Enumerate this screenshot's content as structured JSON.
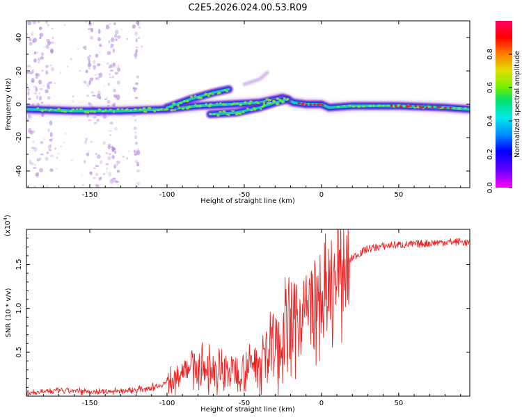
{
  "title": "C2E5.2026.024.00.53.R09",
  "colors": {
    "ridge_outer": "#7a2fd0",
    "ridge_mid": "#1a2ee8",
    "ridge_teal": "#16c8c0",
    "ridge_green": "#7ce23a",
    "ridge_red": "#e8142a",
    "scatter": "#b68be0",
    "snr_line": "#ee2222",
    "colorbar": [
      "#ff00ff",
      "#6a00ff",
      "#0000ff",
      "#0090ff",
      "#00e8e8",
      "#00e070",
      "#70f000",
      "#e0e000",
      "#ff8000",
      "#ff0000",
      "#ff0060"
    ]
  },
  "chart_data": [
    {
      "type": "heatmap",
      "xlabel": "Height of straight line (km)",
      "ylabel": "Frequency (Hz)",
      "xlim": [
        -191,
        96
      ],
      "ylim": [
        -50,
        50
      ],
      "xticks": [
        -150,
        -100,
        -50,
        0,
        50
      ],
      "xtick_labels": [
        "-150",
        "-100",
        "-50",
        "0",
        "50"
      ],
      "yticks": [
        -40,
        -20,
        0,
        20,
        40
      ],
      "ytick_labels": [
        "-40",
        "-20",
        "0",
        "20",
        "40"
      ],
      "ridges": [
        {
          "name": "main",
          "points": [
            [
              -191,
              -3
            ],
            [
              -160,
              -4
            ],
            [
              -130,
              -4
            ],
            [
              -100,
              -3
            ],
            [
              -80,
              -1
            ],
            [
              -60,
              0
            ],
            [
              -40,
              1
            ],
            [
              -25,
              4
            ],
            [
              -18,
              1
            ],
            [
              -10,
              0
            ],
            [
              0,
              0
            ],
            [
              5,
              -2
            ],
            [
              20,
              -1
            ],
            [
              50,
              -1
            ],
            [
              80,
              -2
            ],
            [
              96,
              -3
            ]
          ]
        },
        {
          "name": "upper",
          "points": [
            [
              -100,
              -2
            ],
            [
              -85,
              3
            ],
            [
              -70,
              7
            ],
            [
              -60,
              9
            ]
          ]
        },
        {
          "name": "lower",
          "points": [
            [
              -72,
              -6
            ],
            [
              -55,
              -5
            ],
            [
              -40,
              -2
            ],
            [
              -30,
              1
            ],
            [
              -22,
              3
            ]
          ]
        },
        {
          "name": "faint",
          "points": [
            [
              -50,
              12
            ],
            [
              -40,
              15
            ],
            [
              -35,
              19
            ]
          ]
        }
      ],
      "colorbar": {
        "label": "Normalized spectral amplitude",
        "ticks": [
          0.0,
          0.2,
          0.4,
          0.6,
          0.8
        ],
        "tick_labels": [
          "0.0",
          "0.2",
          "0.4",
          "0.6",
          "0.8"
        ],
        "range": [
          0,
          1
        ]
      }
    },
    {
      "type": "line",
      "xlabel": "Height of straight line (km)",
      "ylabel": "SNR (10 * v/v)",
      "scale_label": "(x10",
      "scale_exp": "4",
      "scale_close": ")",
      "xlim": [
        -191,
        96
      ],
      "ylim": [
        0,
        1.9
      ],
      "xticks": [
        -150,
        -100,
        -50,
        0,
        50
      ],
      "xtick_labels": [
        "-150",
        "-100",
        "-50",
        "0",
        "50"
      ],
      "yticks": [
        0.5,
        1.0,
        1.5
      ],
      "ytick_labels": [
        "0.5",
        "1.0",
        "1.5"
      ],
      "envelope": [
        [
          -191,
          0.04
        ],
        [
          -170,
          0.06
        ],
        [
          -140,
          0.05
        ],
        [
          -120,
          0.07
        ],
        [
          -105,
          0.12
        ],
        [
          -95,
          0.2
        ],
        [
          -88,
          0.35
        ],
        [
          -80,
          0.32
        ],
        [
          -70,
          0.3
        ],
        [
          -60,
          0.28
        ],
        [
          -50,
          0.32
        ],
        [
          -40,
          0.42
        ],
        [
          -30,
          0.55
        ],
        [
          -22,
          0.75
        ],
        [
          -15,
          0.9
        ],
        [
          -8,
          1.0
        ],
        [
          0,
          1.05
        ],
        [
          5,
          1.12
        ],
        [
          10,
          1.3
        ],
        [
          15,
          1.45
        ],
        [
          20,
          1.58
        ],
        [
          30,
          1.68
        ],
        [
          45,
          1.72
        ],
        [
          60,
          1.73
        ],
        [
          75,
          1.75
        ],
        [
          90,
          1.76
        ],
        [
          96,
          1.74
        ]
      ]
    }
  ]
}
